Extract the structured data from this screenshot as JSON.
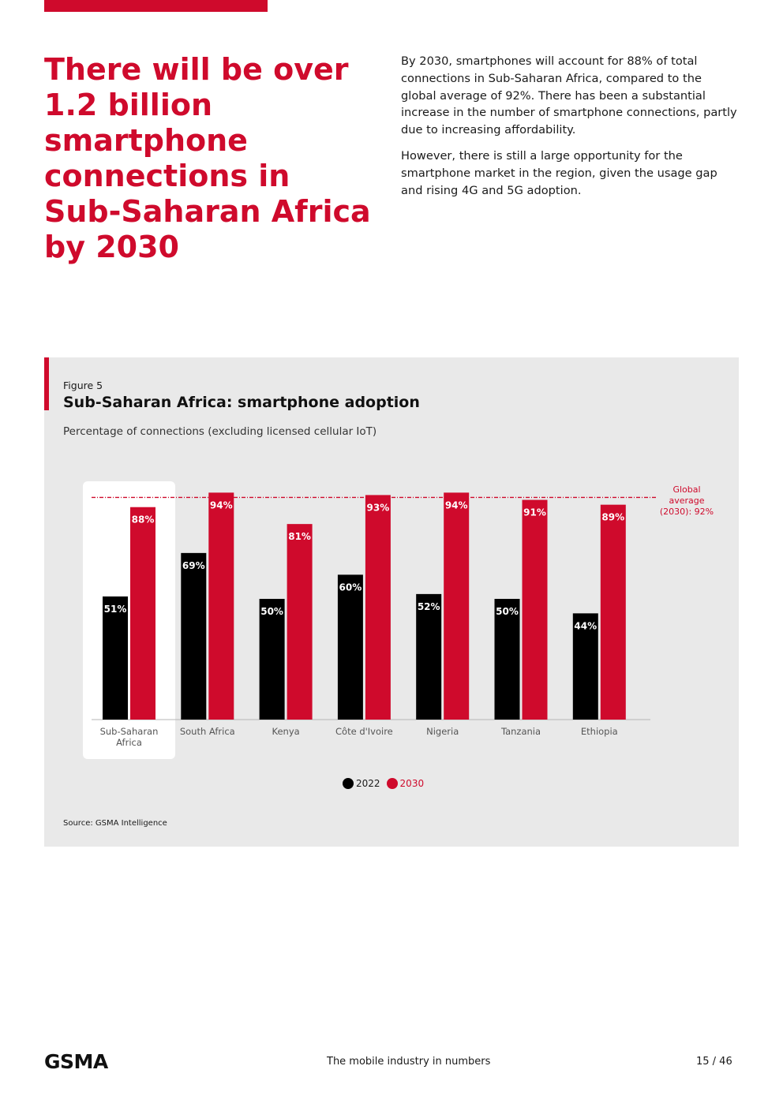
{
  "page": {
    "headline": "There will be over 1.2 billion smartphone connections in Sub-Saharan Africa by 2030",
    "paragraphs": [
      "By 2030, smartphones will account for 88% of total connections in Sub-Saharan Africa, compared to the global average of 92%. There has been a substantial increase in the number of smartphone connections, partly due to increasing affordability.",
      "However, there is still a large opportunity for the smartphone market in the region, given the usage gap and rising 4G and 5G adoption."
    ],
    "footer_text": "The mobile industry in numbers",
    "page_number": "15 / 46",
    "logo_text": "GSMA"
  },
  "figure": {
    "label": "Figure 5",
    "title": "Sub-Saharan Africa: smartphone adoption",
    "subtitle": "Percentage of connections (excluding licensed cellular IoT)",
    "source": "Source: GSMA Intelligence"
  },
  "chart_data": {
    "type": "bar",
    "categories": [
      "Sub-Saharan Africa",
      "South Africa",
      "Kenya",
      "Côte d'Ivoire",
      "Nigeria",
      "Tanzania",
      "Ethiopia"
    ],
    "series": [
      {
        "name": "2022",
        "values": [
          51,
          69,
          50,
          60,
          52,
          50,
          44
        ],
        "labels": [
          "51%",
          "69%",
          "50%",
          "60%",
          "52%",
          "50%",
          "44%"
        ],
        "color": "#000000"
      },
      {
        "name": "2030",
        "values": [
          88,
          94,
          81,
          93,
          94,
          91,
          89
        ],
        "labels": [
          "88%",
          "94%",
          "81%",
          "93%",
          "94%",
          "91%",
          "89%"
        ],
        "color": "#cf0a2c"
      }
    ],
    "reference_line": {
      "value": 92,
      "label_lines": [
        "Global",
        "average",
        "(2030): 92%"
      ],
      "color": "#cf0a2c"
    },
    "highlighted_category": "Sub-Saharan Africa",
    "ylim": [
      0,
      100
    ],
    "legend_position": "bottom-center"
  },
  "colors": {
    "accent": "#cf0a2c",
    "dark": "#000000",
    "panel": "#e9e9e9"
  }
}
